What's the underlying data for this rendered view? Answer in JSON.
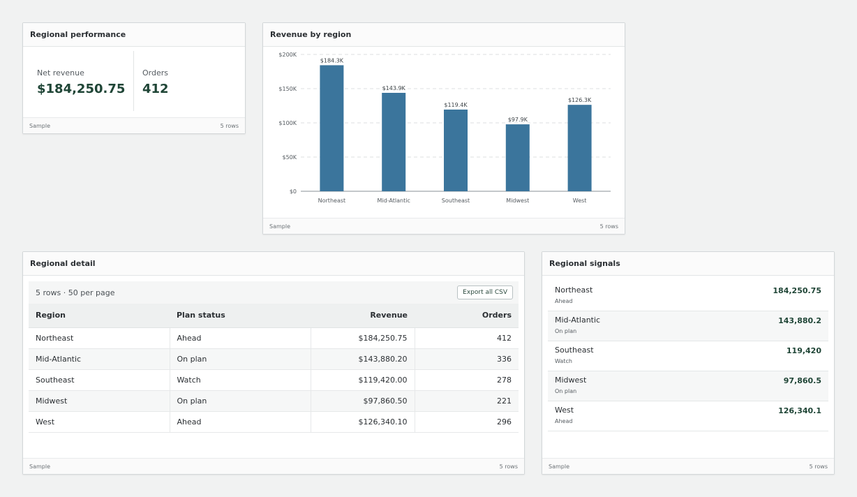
{
  "kpi_card": {
    "title": "Regional performance",
    "net_revenue_label": "Net revenue",
    "net_revenue_value": "$184,250.75",
    "orders_label": "Orders",
    "orders_value": "412",
    "footer_left": "Sample",
    "footer_right": "5 rows"
  },
  "chart_card": {
    "title": "Revenue by region",
    "footer_left": "Sample",
    "footer_right": "5 rows"
  },
  "chart_data": {
    "type": "bar",
    "title": "Revenue by region",
    "xlabel": "",
    "ylabel": "",
    "categories": [
      "Northeast",
      "Mid-Atlantic",
      "Southeast",
      "Midwest",
      "West"
    ],
    "values": [
      184250.75,
      143880.2,
      119420,
      97860.5,
      126340.1
    ],
    "data_labels": [
      "$184.3K",
      "$143.9K",
      "$119.4K",
      "$97.9K",
      "$126.3K"
    ],
    "ylim": [
      0,
      200000
    ],
    "yticks": [
      0,
      50000,
      100000,
      150000,
      200000
    ],
    "ytick_labels": [
      "$0",
      "$50K",
      "$100K",
      "$150K",
      "$200K"
    ],
    "grid": true,
    "bar_color": "#3b759c"
  },
  "detail_card": {
    "title": "Regional detail",
    "toolbar_text": "5 rows · 50 per page",
    "export_label": "Export all CSV",
    "columns": [
      "Region",
      "Plan status",
      "Revenue",
      "Orders"
    ],
    "rows": [
      [
        "Northeast",
        "Ahead",
        "$184,250.75",
        "412"
      ],
      [
        "Mid-Atlantic",
        "On plan",
        "$143,880.20",
        "336"
      ],
      [
        "Southeast",
        "Watch",
        "$119,420.00",
        "278"
      ],
      [
        "Midwest",
        "On plan",
        "$97,860.50",
        "221"
      ],
      [
        "West",
        "Ahead",
        "$126,340.10",
        "296"
      ]
    ],
    "footer_left": "Sample",
    "footer_right": "5 rows"
  },
  "signals_card": {
    "title": "Regional signals",
    "items": [
      {
        "name": "Northeast",
        "status": "Ahead",
        "value": "184,250.75"
      },
      {
        "name": "Mid-Atlantic",
        "status": "On plan",
        "value": "143,880.2"
      },
      {
        "name": "Southeast",
        "status": "Watch",
        "value": "119,420"
      },
      {
        "name": "Midwest",
        "status": "On plan",
        "value": "97,860.5"
      },
      {
        "name": "West",
        "status": "Ahead",
        "value": "126,340.1"
      }
    ],
    "footer_left": "Sample",
    "footer_right": "5 rows"
  },
  "colors": {
    "accent_value": "#1f4536",
    "bar": "#3b759c"
  }
}
